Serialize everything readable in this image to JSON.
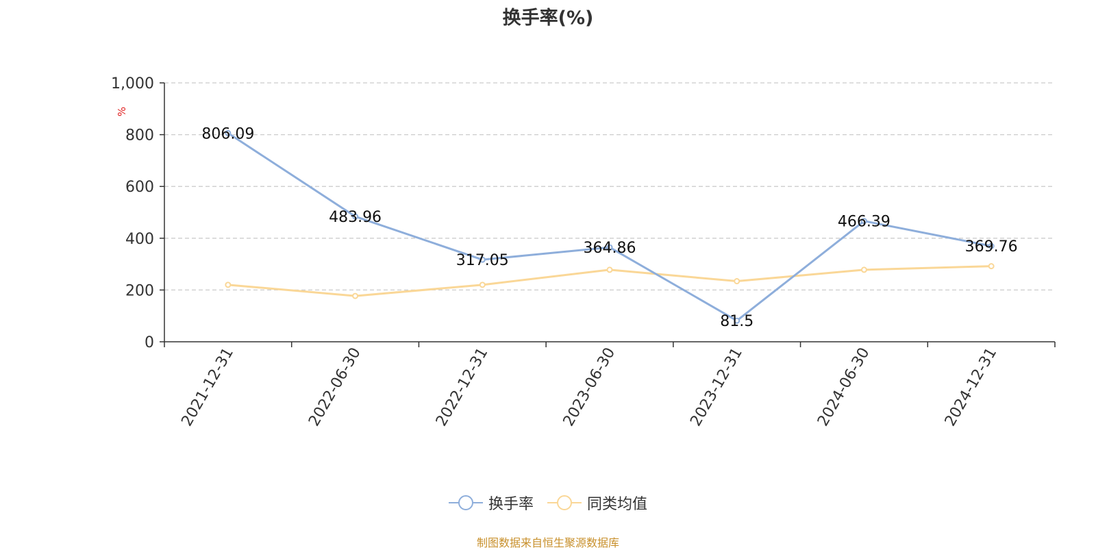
{
  "chart_data": {
    "type": "line",
    "title": "换手率(%)",
    "ylabel": "%",
    "xlabel": "",
    "ylim": [
      0,
      1000
    ],
    "yticks": [
      0,
      200,
      400,
      600,
      800,
      1000
    ],
    "ytick_labels": [
      "0",
      "200",
      "400",
      "600",
      "800",
      "1,000"
    ],
    "grid": true,
    "legend_position": "bottom",
    "categories": [
      "2021-12-31",
      "2022-06-30",
      "2022-12-31",
      "2023-06-30",
      "2023-12-31",
      "2024-06-30",
      "2024-12-31"
    ],
    "series": [
      {
        "name": "换手率",
        "color": "#8eaedb",
        "values": [
          806.09,
          483.96,
          317.05,
          364.86,
          81.5,
          466.39,
          369.76
        ],
        "labels": [
          "806.09",
          "483.96",
          "317.05",
          "364.86",
          "81.5",
          "466.39",
          "369.76"
        ]
      },
      {
        "name": "同类均值",
        "color": "#fad797",
        "values": [
          220,
          177,
          220,
          278,
          234,
          278,
          292
        ]
      }
    ]
  },
  "source_note": "制图数据来自恒生聚源数据库"
}
